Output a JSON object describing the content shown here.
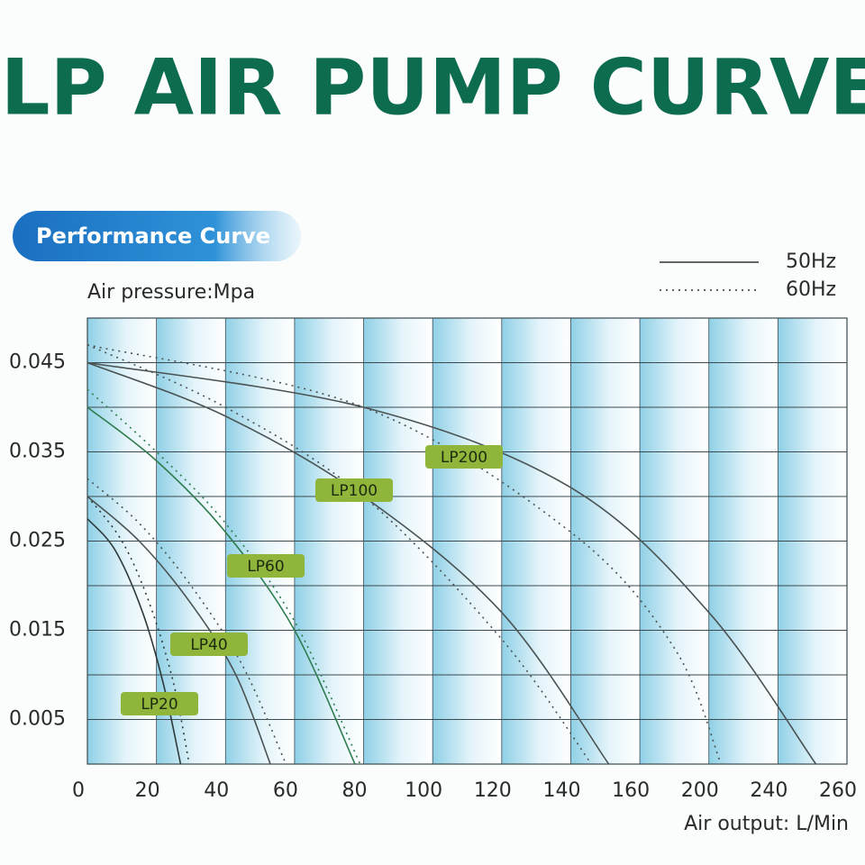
{
  "chart_data": {
    "type": "line",
    "title": "LP AIR PUMP CURVE",
    "subtitle": "Performance Curve",
    "y_label": "Air pressure:Mpa",
    "x_label": "Air output: L/Min",
    "legend": [
      {
        "label": "50Hz",
        "style": "solid"
      },
      {
        "label": "60Hz",
        "style": "dotted"
      }
    ],
    "xlim": [
      0,
      260
    ],
    "xticks": [
      0,
      20,
      40,
      60,
      80,
      100,
      120,
      140,
      160,
      200,
      240,
      260
    ],
    "ylim": [
      0,
      0.05
    ],
    "yticks": [
      0.005,
      0.015,
      0.025,
      0.035,
      0.045
    ],
    "ygrid": [
      0.005,
      0.01,
      0.015,
      0.02,
      0.025,
      0.03,
      0.035,
      0.04,
      0.045
    ],
    "series": [
      {
        "name": "LP20",
        "color": "#2f3a3a",
        "curves": [
          {
            "style": "solid",
            "x": [
              0,
              8,
              16,
              22,
              27
            ],
            "values": [
              0.0275,
              0.024,
              0.017,
              0.009,
              0
            ]
          },
          {
            "style": "dotted",
            "x": [
              0,
              10,
              18,
              25,
              29.5
            ],
            "values": [
              0.03,
              0.025,
              0.018,
              0.009,
              0
            ]
          }
        ]
      },
      {
        "name": "LP40",
        "color": "#4a5252",
        "curves": [
          {
            "style": "solid",
            "x": [
              0,
              15,
              30,
              43,
              53
            ],
            "values": [
              0.03,
              0.025,
              0.018,
              0.01,
              0
            ]
          },
          {
            "style": "dotted",
            "x": [
              0,
              15,
              30,
              45,
              57.5
            ],
            "values": [
              0.032,
              0.027,
              0.02,
              0.011,
              0
            ]
          }
        ]
      },
      {
        "name": "LP60",
        "color": "#2e7d4f",
        "curves": [
          {
            "style": "solid",
            "x": [
              0,
              20,
              40,
              60,
              77.5
            ],
            "values": [
              0.04,
              0.034,
              0.026,
              0.015,
              0
            ]
          },
          {
            "style": "dotted",
            "x": [
              0,
              20,
              40,
              60,
              79
            ],
            "values": [
              0.042,
              0.035,
              0.027,
              0.016,
              0
            ]
          }
        ]
      },
      {
        "name": "LP100",
        "color": "#4a5252",
        "curves": [
          {
            "style": "solid",
            "x": [
              0,
              40,
              80,
              120,
              151
            ],
            "values": [
              0.045,
              0.039,
              0.03,
              0.017,
              0
            ]
          },
          {
            "style": "dotted",
            "x": [
              0,
              40,
              80,
              120,
              146
            ],
            "values": [
              0.047,
              0.04,
              0.03,
              0.014,
              0
            ]
          }
        ]
      },
      {
        "name": "LP200",
        "color": "#4a5252",
        "curves": [
          {
            "style": "solid",
            "x": [
              0,
              80,
              140,
              200,
              251
            ],
            "values": [
              0.045,
              0.04,
              0.031,
              0.017,
              0
            ]
          },
          {
            "style": "dotted",
            "x": [
              0,
              80,
              140,
              180,
              207
            ],
            "values": [
              0.047,
              0.04,
              0.026,
              0.013,
              0
            ]
          }
        ]
      }
    ]
  }
}
